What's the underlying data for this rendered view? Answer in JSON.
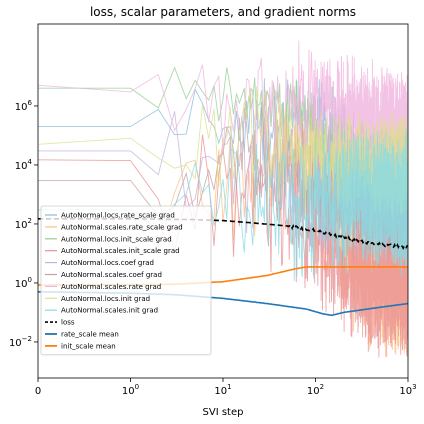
{
  "chart_data": {
    "type": "line",
    "title": "loss, scalar parameters, and gradient norms",
    "xlabel": "SVI step",
    "ylabel": "",
    "xscale": "symlog",
    "yscale": "log",
    "xlim": [
      0,
      1000
    ],
    "ylim": [
      0.0006,
      600000000
    ],
    "grid": false,
    "legend_position": "lower-left",
    "x_ticks": [
      {
        "value": 0,
        "base": "0",
        "exp": ""
      },
      {
        "value": 1,
        "base": "10",
        "exp": "0"
      },
      {
        "value": 10,
        "base": "10",
        "exp": "1"
      },
      {
        "value": 100,
        "base": "10",
        "exp": "2"
      },
      {
        "value": 1000,
        "base": "10",
        "exp": "3"
      }
    ],
    "y_ticks": [
      {
        "value": 0.01,
        "base": "10",
        "exp": "−2"
      },
      {
        "value": 1,
        "base": "10",
        "exp": "0"
      },
      {
        "value": 100,
        "base": "10",
        "exp": "2"
      },
      {
        "value": 10000,
        "base": "10",
        "exp": "4"
      },
      {
        "value": 1000000,
        "base": "10",
        "exp": "6"
      }
    ],
    "series": [
      {
        "name": "AutoNormal.locs.rate_scale grad",
        "color": "#8fbbd9",
        "style": "grad",
        "points": [
          [
            0,
            200000
          ],
          [
            20,
            200000
          ],
          [
            60,
            200000
          ],
          [
            100,
            200000
          ],
          [
            150,
            120000
          ],
          [
            200,
            30000
          ],
          [
            300,
            10000
          ],
          [
            500,
            5000
          ],
          [
            1000,
            3000
          ]
        ],
        "noise": 0.9
      },
      {
        "name": "AutoNormal.scales.rate_scale grad",
        "color": "#ffbf86",
        "style": "grad",
        "points": [
          [
            0,
            150
          ],
          [
            1,
            160
          ],
          [
            5,
            600
          ],
          [
            20,
            3000
          ],
          [
            60,
            15000
          ],
          [
            100,
            2000
          ],
          [
            150,
            300
          ],
          [
            200,
            10
          ],
          [
            400,
            2
          ],
          [
            1000,
            1
          ]
        ],
        "noise": 1.4
      },
      {
        "name": "AutoNormal.locs.init_scale grad",
        "color": "#95cf95",
        "style": "grad",
        "points": [
          [
            0,
            4000000
          ],
          [
            1,
            4000000
          ],
          [
            10,
            3000000
          ],
          [
            40,
            1500000
          ],
          [
            80,
            500000
          ],
          [
            150,
            20000
          ],
          [
            200,
            5000
          ],
          [
            400,
            2000
          ],
          [
            1000,
            2000
          ]
        ],
        "noise": 0.6
      },
      {
        "name": "AutoNormal.scales.init_scale grad",
        "color": "#ea9293",
        "style": "grad",
        "points": [
          [
            0,
            15000
          ],
          [
            1,
            14000
          ],
          [
            3,
            3000
          ],
          [
            10,
            1500
          ],
          [
            30,
            400
          ],
          [
            60,
            100
          ],
          [
            100,
            30
          ],
          [
            200,
            3
          ],
          [
            400,
            1
          ],
          [
            1000,
            1
          ]
        ],
        "noise": 1.3
      },
      {
        "name": "AutoNormal.locs.coef grad",
        "color": "#c6b1dc",
        "style": "grad",
        "points": [
          [
            0,
            30000
          ],
          [
            1,
            30000
          ],
          [
            5,
            10000
          ],
          [
            10,
            5000
          ],
          [
            30,
            8000
          ],
          [
            60,
            3000
          ],
          [
            100,
            1000
          ],
          [
            200,
            2000
          ],
          [
            500,
            1000
          ],
          [
            1000,
            1000
          ]
        ],
        "noise": 1.2
      },
      {
        "name": "AutoNormal.scales.coef grad",
        "color": "#c2a39d",
        "style": "grad",
        "points": [
          [
            0,
            3000
          ],
          [
            1,
            3000
          ],
          [
            5,
            5000
          ],
          [
            20,
            15000
          ],
          [
            50,
            8000
          ],
          [
            100,
            2000
          ],
          [
            200,
            500
          ],
          [
            500,
            500
          ],
          [
            1000,
            400
          ]
        ],
        "noise": 1.1
      },
      {
        "name": "AutoNormal.scales.rate grad",
        "color": "#f0b4de",
        "style": "grad",
        "points": [
          [
            0,
            5000000
          ],
          [
            1,
            3000000
          ],
          [
            5,
            800000
          ],
          [
            20,
            600000
          ],
          [
            50,
            1500000
          ],
          [
            100,
            1000000
          ],
          [
            200,
            800000
          ],
          [
            500,
            200000
          ],
          [
            1000,
            100000
          ]
        ],
        "noise": 1.1
      },
      {
        "name": "AutoNormal.locs.init grad",
        "color": "#dfdf8e",
        "style": "grad",
        "points": [
          [
            0,
            50000
          ],
          [
            1,
            80000
          ],
          [
            5,
            150000
          ],
          [
            20,
            80000
          ],
          [
            50,
            30000
          ],
          [
            100,
            20000
          ],
          [
            200,
            10000
          ],
          [
            500,
            10000
          ],
          [
            1000,
            8000
          ]
        ],
        "noise": 1.0
      },
      {
        "name": "AutoNormal.scales.init grad",
        "color": "#86dce6",
        "style": "grad",
        "points": [
          [
            0,
            300
          ],
          [
            1,
            300
          ],
          [
            3,
            600
          ],
          [
            10,
            1500
          ],
          [
            30,
            600
          ],
          [
            60,
            200
          ],
          [
            100,
            300
          ],
          [
            200,
            600
          ],
          [
            500,
            600
          ],
          [
            1000,
            500
          ]
        ],
        "noise": 1.3
      },
      {
        "name": "loss",
        "color": "#000000",
        "style": "dashed",
        "points": [
          [
            0,
            150
          ],
          [
            1,
            150
          ],
          [
            5,
            140
          ],
          [
            10,
            130
          ],
          [
            20,
            110
          ],
          [
            50,
            85
          ],
          [
            100,
            60
          ],
          [
            200,
            35
          ],
          [
            400,
            22
          ],
          [
            700,
            18
          ],
          [
            1000,
            16
          ]
        ],
        "noise": 0.05
      },
      {
        "name": "rate_scale mean",
        "color": "#1f77b4",
        "style": "mean",
        "points": [
          [
            0,
            0.5
          ],
          [
            1,
            0.45
          ],
          [
            3,
            0.4
          ],
          [
            10,
            0.3
          ],
          [
            30,
            0.2
          ],
          [
            80,
            0.13
          ],
          [
            120,
            0.09
          ],
          [
            150,
            0.08
          ],
          [
            200,
            0.1
          ],
          [
            500,
            0.15
          ],
          [
            1000,
            0.2
          ]
        ],
        "noise": 0
      },
      {
        "name": "init_scale mean",
        "color": "#ff7f0e",
        "style": "mean",
        "points": [
          [
            0,
            0.85
          ],
          [
            3,
            0.9
          ],
          [
            10,
            1.1
          ],
          [
            30,
            1.8
          ],
          [
            60,
            3
          ],
          [
            80,
            3.5
          ],
          [
            100,
            3.5
          ],
          [
            200,
            3.5
          ],
          [
            500,
            3.5
          ],
          [
            1000,
            3.5
          ]
        ],
        "noise": 0
      }
    ]
  }
}
